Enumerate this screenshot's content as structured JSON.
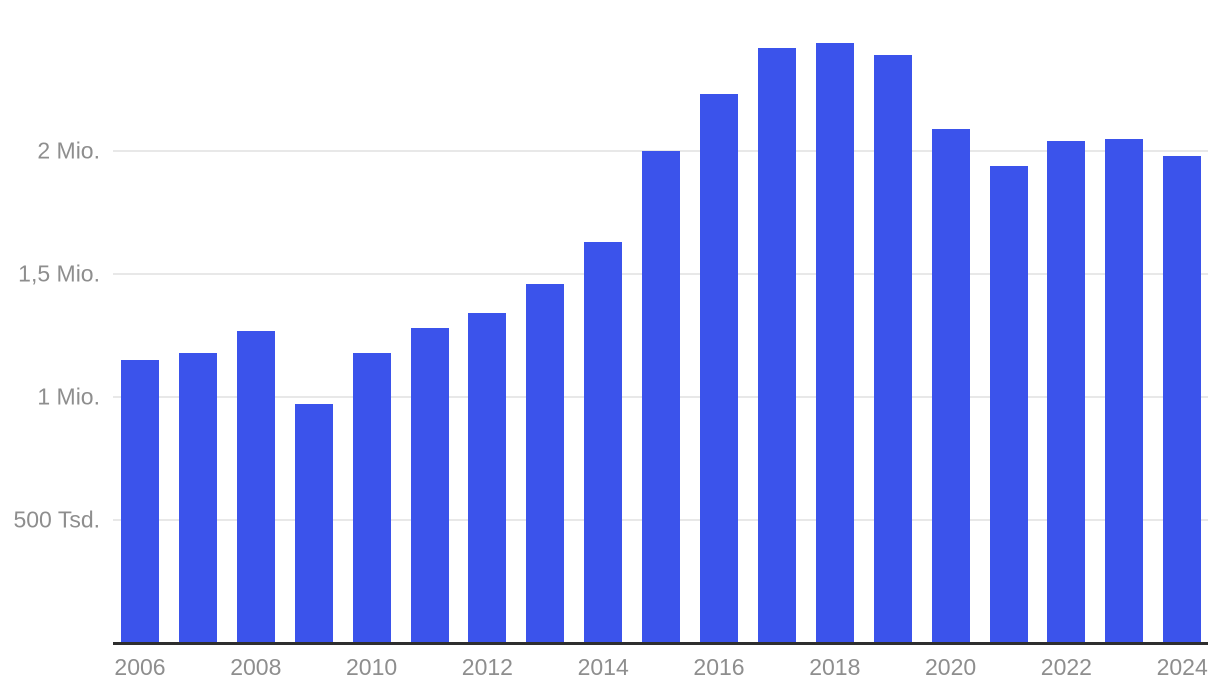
{
  "chart_data": {
    "type": "bar",
    "categories": [
      "2006",
      "2007",
      "2008",
      "2009",
      "2010",
      "2011",
      "2012",
      "2013",
      "2014",
      "2015",
      "2016",
      "2017",
      "2018",
      "2019",
      "2020",
      "2021",
      "2022",
      "2023",
      "2024"
    ],
    "values": [
      1.15,
      1.18,
      1.27,
      0.97,
      1.18,
      1.28,
      1.34,
      1.46,
      1.63,
      2.0,
      2.23,
      2.42,
      2.44,
      2.39,
      2.09,
      1.94,
      2.04,
      2.05,
      1.98
    ],
    "unit": "Mio.",
    "xlabel": "",
    "ylabel": "",
    "ylim": [
      0,
      2.5
    ],
    "yticks": [
      {
        "value": 0.5,
        "label": "500 Tsd."
      },
      {
        "value": 1.0,
        "label": "1 Mio."
      },
      {
        "value": 1.5,
        "label": "1,5 Mio."
      },
      {
        "value": 2.0,
        "label": "2 Mio."
      }
    ],
    "xtick_years": [
      "2006",
      "2008",
      "2010",
      "2012",
      "2014",
      "2016",
      "2018",
      "2020",
      "2022",
      "2024"
    ],
    "grid": true,
    "legend": false,
    "colors": {
      "bar": "#3B53EB",
      "gridline": "#E8E8E8",
      "axis_line": "#2E2E2E",
      "tick_label": "#8E8E8E",
      "background": "#FFFFFF"
    }
  }
}
